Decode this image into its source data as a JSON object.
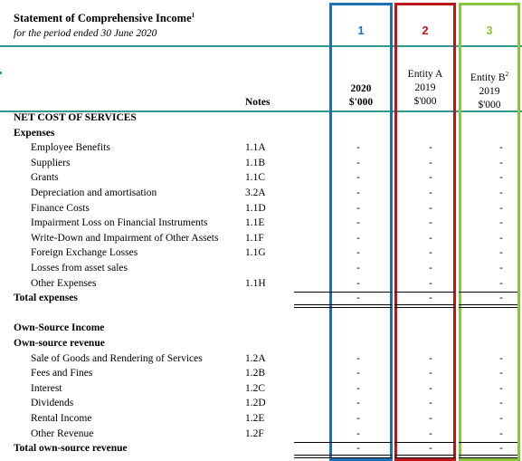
{
  "statement": {
    "title": "Statement of Comprehensive Income",
    "title_footnote": "1",
    "period": "for the period ended 30 June 2020"
  },
  "column_markers": [
    {
      "number": "1",
      "color": "#1f6fb5"
    },
    {
      "number": "2",
      "color": "#c0141b"
    },
    {
      "number": "3",
      "color": "#8cc63f"
    }
  ],
  "headers": {
    "notes": "Notes",
    "col1": {
      "year": "2020",
      "unit": "$'000"
    },
    "col2": {
      "entity": "Entity A",
      "year": "2019",
      "unit": "$'000"
    },
    "col3": {
      "entity": "Entity B",
      "entity_footnote": "2",
      "year": "2019",
      "unit": "$'000"
    }
  },
  "rows": [
    {
      "label": "NET COST OF SERVICES",
      "note": "",
      "values": [
        "",
        "",
        ""
      ],
      "style": "section"
    },
    {
      "label": "Expenses",
      "note": "",
      "values": [
        "",
        "",
        ""
      ],
      "style": "heading"
    },
    {
      "label": "Employee Benefits",
      "note": "1.1A",
      "values": [
        "-",
        "-",
        "-"
      ],
      "style": "item"
    },
    {
      "label": "Suppliers",
      "note": "1.1B",
      "values": [
        "-",
        "-",
        "-"
      ],
      "style": "item"
    },
    {
      "label": "Grants",
      "note": "1.1C",
      "values": [
        "-",
        "-",
        "-"
      ],
      "style": "item"
    },
    {
      "label": "Depreciation and amortisation",
      "note": "3.2A",
      "values": [
        "-",
        "-",
        "-"
      ],
      "style": "item"
    },
    {
      "label": "Finance Costs",
      "note": "1.1D",
      "values": [
        "-",
        "-",
        "-"
      ],
      "style": "item"
    },
    {
      "label": "Impairment Loss on Financial Instruments",
      "note": "1.1E",
      "values": [
        "-",
        "-",
        "-"
      ],
      "style": "item"
    },
    {
      "label": "Write-Down and Impairment of Other Assets",
      "note": "1.1F",
      "values": [
        "-",
        "-",
        "-"
      ],
      "style": "item"
    },
    {
      "label": "Foreign Exchange Losses",
      "note": "1.1G",
      "values": [
        "-",
        "-",
        "-"
      ],
      "style": "item"
    },
    {
      "label": "Losses from asset sales",
      "note": "",
      "values": [
        "-",
        "-",
        "-"
      ],
      "style": "item"
    },
    {
      "label": "Other Expenses",
      "note": "1.1H",
      "values": [
        "-",
        "-",
        "-"
      ],
      "style": "item"
    },
    {
      "label": "Total expenses",
      "note": "",
      "values": [
        "-",
        "-",
        "-"
      ],
      "style": "total"
    },
    {
      "label": "",
      "note": "",
      "values": [
        "",
        "",
        ""
      ],
      "style": "spacer"
    },
    {
      "label": "Own-Source Income",
      "note": "",
      "values": [
        "",
        "",
        ""
      ],
      "style": "heading"
    },
    {
      "label": "Own-source revenue",
      "note": "",
      "values": [
        "",
        "",
        ""
      ],
      "style": "heading"
    },
    {
      "label": "Sale of Goods and Rendering of Services",
      "note": "1.2A",
      "values": [
        "-",
        "-",
        "-"
      ],
      "style": "item"
    },
    {
      "label": "Fees and Fines",
      "note": "1.2B",
      "values": [
        "-",
        "-",
        "-"
      ],
      "style": "item"
    },
    {
      "label": "Interest",
      "note": "1.2C",
      "values": [
        "-",
        "-",
        "-"
      ],
      "style": "item"
    },
    {
      "label": "Dividends",
      "note": "1.2D",
      "values": [
        "-",
        "-",
        "-"
      ],
      "style": "item"
    },
    {
      "label": "Rental Income",
      "note": "1.2E",
      "values": [
        "-",
        "-",
        "-"
      ],
      "style": "item"
    },
    {
      "label": "Other Revenue",
      "note": "1.2F",
      "values": [
        "-",
        "-",
        "-"
      ],
      "style": "item"
    },
    {
      "label": "Total own-source revenue",
      "note": "",
      "values": [
        "-",
        "-",
        "-"
      ],
      "style": "total"
    }
  ]
}
